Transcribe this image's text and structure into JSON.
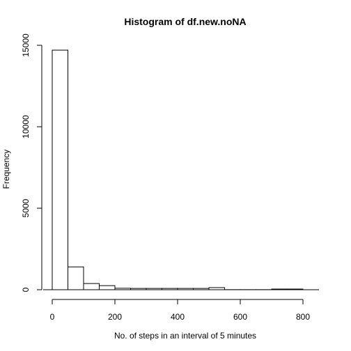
{
  "chart_data": {
    "type": "bar",
    "title": "Histogram of df.new.noNA",
    "xlabel": "No. of steps in an interval of 5 minutes",
    "ylabel": "Frequency",
    "bin_width": 50,
    "bins": [
      {
        "start": 0,
        "end": 50,
        "count": 14700
      },
      {
        "start": 50,
        "end": 100,
        "count": 1400
      },
      {
        "start": 100,
        "end": 150,
        "count": 380
      },
      {
        "start": 150,
        "end": 200,
        "count": 250
      },
      {
        "start": 200,
        "end": 250,
        "count": 90
      },
      {
        "start": 250,
        "end": 300,
        "count": 80
      },
      {
        "start": 300,
        "end": 350,
        "count": 80
      },
      {
        "start": 350,
        "end": 400,
        "count": 80
      },
      {
        "start": 400,
        "end": 450,
        "count": 80
      },
      {
        "start": 450,
        "end": 500,
        "count": 80
      },
      {
        "start": 500,
        "end": 550,
        "count": 130
      },
      {
        "start": 550,
        "end": 600,
        "count": 5
      },
      {
        "start": 600,
        "end": 650,
        "count": 5
      },
      {
        "start": 650,
        "end": 700,
        "count": 5
      },
      {
        "start": 700,
        "end": 750,
        "count": 40
      },
      {
        "start": 750,
        "end": 800,
        "count": 40
      }
    ],
    "xlim": [
      0,
      800
    ],
    "ylim": [
      0,
      15000
    ],
    "x_ticks": [
      0,
      200,
      400,
      600,
      800
    ],
    "y_ticks": [
      0,
      5000,
      10000,
      15000
    ],
    "grid": false,
    "bar_fill": "#ffffff",
    "bar_stroke": "#000000"
  }
}
